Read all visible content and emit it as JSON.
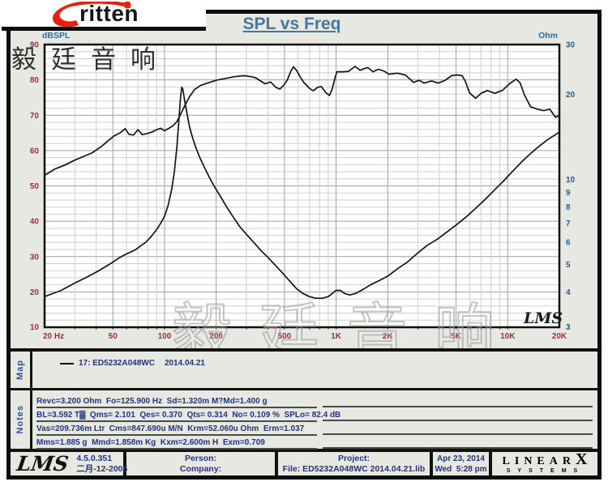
{
  "brand": {
    "logo_text": "ritten",
    "cjk": "毅廷音响",
    "logo_accent_color": "#e22310"
  },
  "header": {
    "title": "SPL vs Freq",
    "title_color": "#47789c"
  },
  "chart_data": {
    "type": "line",
    "title": "SPL vs Freq",
    "watermark": "毅廷音响",
    "lms_stamp": "LMS",
    "x_axis": {
      "scale": "log",
      "min": 20,
      "max": 20000,
      "unit": "Hz",
      "ticks": [
        {
          "v": 20,
          "t": "20 Hz"
        },
        {
          "v": 50,
          "t": "50"
        },
        {
          "v": 100,
          "t": "100"
        },
        {
          "v": 200,
          "t": "200"
        },
        {
          "v": 500,
          "t": "500"
        },
        {
          "v": 1000,
          "t": "1K"
        },
        {
          "v": 2000,
          "t": "2K"
        },
        {
          "v": 5000,
          "t": "5K"
        },
        {
          "v": 10000,
          "t": "10K"
        },
        {
          "v": 20000,
          "t": "20K"
        }
      ]
    },
    "y_left": {
      "label": "dBSPL",
      "min": 10,
      "max": 90,
      "ticks": [
        90,
        80,
        70,
        60,
        50,
        40,
        30,
        20,
        10
      ]
    },
    "y_right": {
      "label": "Ohm",
      "scale": "log",
      "min": 3,
      "max": 30,
      "ticks": [
        30,
        20,
        10,
        9,
        8,
        7,
        6,
        5,
        4,
        3
      ]
    },
    "grid": {
      "h_minor_step_db": 2,
      "h_major_step_db": 10
    },
    "legend_position": "map-strip-below-chart",
    "colors": {
      "left_ticks": "#9b2f3f",
      "right_ticks": "#2b5c86",
      "axis_labels": "#2e6da0",
      "grid_minor": "#cdd0cb",
      "grid_major": "#9fa29d",
      "curve": "#141414"
    },
    "series": [
      {
        "id": "spl-curve",
        "name": "17: ED5232A048WC 2014.04.21 (SPL)",
        "axis": "left",
        "unit": "dB",
        "points": [
          [
            20,
            53
          ],
          [
            23,
            54.8
          ],
          [
            26,
            55.8
          ],
          [
            30,
            57.3
          ],
          [
            34,
            58.4
          ],
          [
            38,
            59.4
          ],
          [
            43,
            61.2
          ],
          [
            47,
            62.8
          ],
          [
            51,
            64.2
          ],
          [
            55,
            65
          ],
          [
            59,
            66.2
          ],
          [
            62,
            64.6
          ],
          [
            66,
            64.4
          ],
          [
            70,
            65.9
          ],
          [
            74,
            64.5
          ],
          [
            79,
            64.8
          ],
          [
            84,
            65.2
          ],
          [
            90,
            65.9
          ],
          [
            95,
            66.3
          ],
          [
            100,
            65.6
          ],
          [
            106,
            66.3
          ],
          [
            112,
            67
          ],
          [
            118,
            68.2
          ],
          [
            125,
            70.6
          ],
          [
            132,
            73
          ],
          [
            140,
            75.3
          ],
          [
            150,
            77.3
          ],
          [
            162,
            78.4
          ],
          [
            178,
            79.1
          ],
          [
            200,
            79.9
          ],
          [
            225,
            80.4
          ],
          [
            255,
            80.9
          ],
          [
            290,
            81.2
          ],
          [
            320,
            80.9
          ],
          [
            340,
            80.6
          ],
          [
            360,
            79.8
          ],
          [
            385,
            78.9
          ],
          [
            415,
            79.4
          ],
          [
            445,
            77.9
          ],
          [
            470,
            77.4
          ],
          [
            495,
            78.5
          ],
          [
            520,
            80
          ],
          [
            545,
            82.5
          ],
          [
            565,
            83.7
          ],
          [
            590,
            82.6
          ],
          [
            615,
            81
          ],
          [
            650,
            79.2
          ],
          [
            700,
            77.6
          ],
          [
            735,
            76.9
          ],
          [
            780,
            77.9
          ],
          [
            820,
            78.1
          ],
          [
            870,
            76.4
          ],
          [
            915,
            75.6
          ],
          [
            950,
            77.5
          ],
          [
            985,
            80.5
          ],
          [
            1010,
            82.3
          ],
          [
            1100,
            82.3
          ],
          [
            1180,
            82.4
          ],
          [
            1290,
            83.8
          ],
          [
            1380,
            82.7
          ],
          [
            1460,
            83.2
          ],
          [
            1530,
            83.5
          ],
          [
            1640,
            82.3
          ],
          [
            1760,
            83
          ],
          [
            1900,
            82.5
          ],
          [
            2030,
            81.6
          ],
          [
            2270,
            81.9
          ],
          [
            2530,
            81.4
          ],
          [
            2830,
            79.3
          ],
          [
            3050,
            79.9
          ],
          [
            3260,
            79.1
          ],
          [
            3600,
            79.7
          ],
          [
            3930,
            79.1
          ],
          [
            4290,
            79.8
          ],
          [
            4710,
            81.2
          ],
          [
            5030,
            81.4
          ],
          [
            5420,
            81.2
          ],
          [
            5650,
            79.7
          ],
          [
            6000,
            76.3
          ],
          [
            6500,
            74.8
          ],
          [
            7000,
            76.2
          ],
          [
            7600,
            77
          ],
          [
            8400,
            76.2
          ],
          [
            9300,
            77
          ],
          [
            10300,
            79
          ],
          [
            11200,
            80.2
          ],
          [
            11800,
            79.2
          ],
          [
            12500,
            75.8
          ],
          [
            13600,
            72.4
          ],
          [
            14900,
            71.7
          ],
          [
            16200,
            71.3
          ],
          [
            17600,
            71.7
          ],
          [
            19000,
            69.4
          ],
          [
            20000,
            70
          ]
        ]
      },
      {
        "id": "impedance-curve",
        "name": "17: ED5232A048WC 2014.04.21 (Impedance)",
        "axis": "right",
        "unit": "Ohm",
        "points": [
          [
            20,
            3.85
          ],
          [
            25,
            4.05
          ],
          [
            30,
            4.3
          ],
          [
            35,
            4.5
          ],
          [
            40,
            4.7
          ],
          [
            45,
            4.9
          ],
          [
            50,
            5.1
          ],
          [
            55,
            5.3
          ],
          [
            60,
            5.45
          ],
          [
            64,
            5.55
          ],
          [
            68,
            5.65
          ],
          [
            72,
            5.8
          ],
          [
            78,
            6.0
          ],
          [
            84,
            6.3
          ],
          [
            90,
            6.65
          ],
          [
            95,
            7.0
          ],
          [
            100,
            7.4
          ],
          [
            105,
            8.1
          ],
          [
            110,
            9.2
          ],
          [
            114,
            10.6
          ],
          [
            118,
            13.0
          ],
          [
            121,
            16.0
          ],
          [
            124,
            19.5
          ],
          [
            126,
            21.2
          ],
          [
            128,
            20.8
          ],
          [
            131,
            19.0
          ],
          [
            135,
            17.2
          ],
          [
            140,
            15.3
          ],
          [
            146,
            14.0
          ],
          [
            152,
            13.0
          ],
          [
            160,
            12.0
          ],
          [
            170,
            11.1
          ],
          [
            182,
            10.2
          ],
          [
            196,
            9.4
          ],
          [
            212,
            8.7
          ],
          [
            230,
            8.0
          ],
          [
            250,
            7.4
          ],
          [
            275,
            6.8
          ],
          [
            300,
            6.4
          ],
          [
            330,
            6.0
          ],
          [
            365,
            5.6
          ],
          [
            400,
            5.3
          ],
          [
            445,
            4.95
          ],
          [
            490,
            4.65
          ],
          [
            540,
            4.35
          ],
          [
            590,
            4.1
          ],
          [
            640,
            3.95
          ],
          [
            700,
            3.85
          ],
          [
            760,
            3.8
          ],
          [
            830,
            3.8
          ],
          [
            900,
            3.85
          ],
          [
            950,
            3.95
          ],
          [
            1000,
            4.05
          ],
          [
            1060,
            4.05
          ],
          [
            1120,
            3.95
          ],
          [
            1200,
            3.9
          ],
          [
            1300,
            3.95
          ],
          [
            1450,
            4.1
          ],
          [
            1600,
            4.25
          ],
          [
            1800,
            4.4
          ],
          [
            2000,
            4.55
          ],
          [
            2300,
            4.85
          ],
          [
            2600,
            5.1
          ],
          [
            3000,
            5.5
          ],
          [
            3400,
            5.85
          ],
          [
            3900,
            6.15
          ],
          [
            4400,
            6.5
          ],
          [
            5000,
            6.9
          ],
          [
            5700,
            7.35
          ],
          [
            6500,
            7.9
          ],
          [
            7400,
            8.5
          ],
          [
            8400,
            9.2
          ],
          [
            9500,
            9.9
          ],
          [
            10700,
            10.7
          ],
          [
            12000,
            11.5
          ],
          [
            13500,
            12.3
          ],
          [
            15000,
            13.0
          ],
          [
            17000,
            13.8
          ],
          [
            19000,
            14.4
          ],
          [
            20000,
            14.7
          ]
        ]
      }
    ]
  },
  "map": {
    "label": "Map",
    "legend_name": "17: ED5232A048WC",
    "legend_date": "2014.04.21"
  },
  "notes": {
    "label": "Notes",
    "lines": [
      "Revc=3.200 Ohm  Fo=125.900 Hz  Sd=1.320m M?Md=1.400 g",
      "BL=3.592 T▓  Qms= 2.101  Qes= 0.370  Qts= 0.314  No= 0.109 %  SPLo= 82.4 dB",
      "Vas=209.736m Ltr  Cms=847.690u M/N  Krm=52.060u Ohm  Erm=1.037",
      "Mms=1.885 g  Mmd=1.858m Kg  Kxm=2.600m H  Exm=0.709"
    ]
  },
  "footer": {
    "lms_logo": "LMS",
    "version": "4.5.0.351",
    "version_date": "二月-12-2005",
    "person_label": "Person:",
    "company_label": "Company:",
    "project_label": "Project:",
    "file_label": "File: ED5232A048WC 2014.04.21.lib",
    "date": "Apr 23, 2014",
    "time": "Wed  5:28 pm",
    "brand_top": "LINEAR",
    "brand_x": "X",
    "brand_bottom": "SYSTEMS"
  }
}
